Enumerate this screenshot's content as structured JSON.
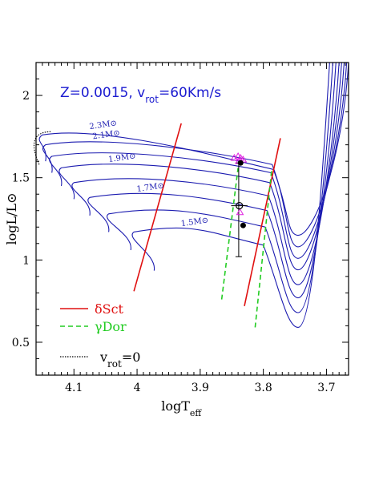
{
  "chart_data": {
    "type": "line",
    "title": "Z=0.0015, v_rot=60Km/s",
    "xlabel": "logT_eff",
    "ylabel": "logL/L⊙",
    "xlim": [
      4.16,
      3.665
    ],
    "ylim": [
      0.3,
      2.2
    ],
    "x_ticks": [
      {
        "value": 4.1,
        "label": "4.1"
      },
      {
        "value": 4.0,
        "label": "4"
      },
      {
        "value": 3.9,
        "label": "3.9"
      },
      {
        "value": 3.8,
        "label": "3.8"
      },
      {
        "value": 3.7,
        "label": "3.7"
      }
    ],
    "y_ticks": [
      {
        "value": 0.5,
        "label": "0.5"
      },
      {
        "value": 1.0,
        "label": "1"
      },
      {
        "value": 1.5,
        "label": "1.5"
      },
      {
        "value": 2.0,
        "label": "2"
      }
    ],
    "track_color": "#1b1bb0",
    "tracks": [
      {
        "mass": 1.5,
        "label": "1.5M⊙",
        "zams": [
          3.973,
          0.935
        ],
        "loop": [
          4.02,
          1.17
        ],
        "tams": [
          3.8,
          1.09
        ],
        "min": [
          3.745,
          0.59
        ],
        "end": [
          3.695,
          2.2
        ]
      },
      {
        "mass": 1.6,
        "label": "",
        "zams": [
          4.01,
          1.06
        ],
        "loop": [
          4.06,
          1.28
        ],
        "tams": [
          3.797,
          1.2
        ],
        "min": [
          3.745,
          0.68
        ],
        "end": [
          3.69,
          2.2
        ]
      },
      {
        "mass": 1.7,
        "label": "1.7M⊙",
        "zams": [
          4.045,
          1.17
        ],
        "loop": [
          4.09,
          1.38
        ],
        "tams": [
          3.794,
          1.3
        ],
        "min": [
          3.745,
          0.77
        ],
        "end": [
          3.685,
          2.2
        ]
      },
      {
        "mass": 1.8,
        "label": "",
        "zams": [
          4.075,
          1.27
        ],
        "loop": [
          4.115,
          1.47
        ],
        "tams": [
          3.792,
          1.39
        ],
        "min": [
          3.745,
          0.85
        ],
        "end": [
          3.68,
          2.2
        ]
      },
      {
        "mass": 1.9,
        "label": "1.9M⊙",
        "zams": [
          4.1,
          1.37
        ],
        "loop": [
          4.135,
          1.56
        ],
        "tams": [
          3.79,
          1.47
        ],
        "min": [
          3.745,
          0.94
        ],
        "end": [
          3.676,
          2.2
        ]
      },
      {
        "mass": 2.0,
        "label": "",
        "zams": [
          4.12,
          1.45
        ],
        "loop": [
          4.15,
          1.63
        ],
        "tams": [
          3.788,
          1.53
        ],
        "min": [
          3.745,
          1.01
        ],
        "end": [
          3.672,
          2.2
        ]
      },
      {
        "mass": 2.1,
        "label": "2.1M⊙",
        "zams": [
          4.135,
          1.53
        ],
        "loop": [
          4.16,
          1.7
        ],
        "tams": [
          3.786,
          1.58
        ],
        "min": [
          3.745,
          1.08
        ],
        "end": [
          3.668,
          2.2
        ]
      },
      {
        "mass": 2.3,
        "label": "2.3M⊙",
        "zams": [
          4.145,
          1.6
        ],
        "loop": [
          4.165,
          1.76
        ],
        "tams": [
          3.784,
          1.55
        ],
        "min": [
          3.745,
          1.15
        ],
        "end": [
          3.665,
          2.2
        ]
      }
    ],
    "instability_strips": [
      {
        "name": "δSct",
        "color": "#e01010",
        "dash": "solid",
        "lines": [
          [
            [
              4.005,
              0.81
            ],
            [
              3.93,
              1.83
            ]
          ],
          [
            [
              3.83,
              0.72
            ],
            [
              3.773,
              1.74
            ]
          ]
        ]
      },
      {
        "name": "γDor",
        "color": "#22cc22",
        "dash": "dashed",
        "lines": [
          [
            [
              3.866,
              0.76
            ],
            [
              3.84,
              1.56
            ]
          ],
          [
            [
              3.813,
              0.59
            ],
            [
              3.787,
              1.54
            ]
          ]
        ]
      }
    ],
    "nonrot_label": "v_rot=0",
    "observed_points": [
      {
        "name": "filled-1",
        "x": 3.836,
        "y": 1.59
      },
      {
        "name": "open",
        "x": 3.838,
        "y": 1.33,
        "xerr": 0.013
      },
      {
        "name": "filled-2",
        "x": 3.832,
        "y": 1.21
      }
    ],
    "error_bar": {
      "x": 3.839,
      "y_low": 1.02,
      "y_high": 1.59
    },
    "magenta_triangles": [
      [
        3.846,
        1.62
      ],
      [
        3.84,
        1.63
      ],
      [
        3.836,
        1.62
      ],
      [
        3.832,
        1.61
      ],
      [
        3.839,
        1.6
      ],
      [
        3.837,
        1.29
      ]
    ]
  }
}
